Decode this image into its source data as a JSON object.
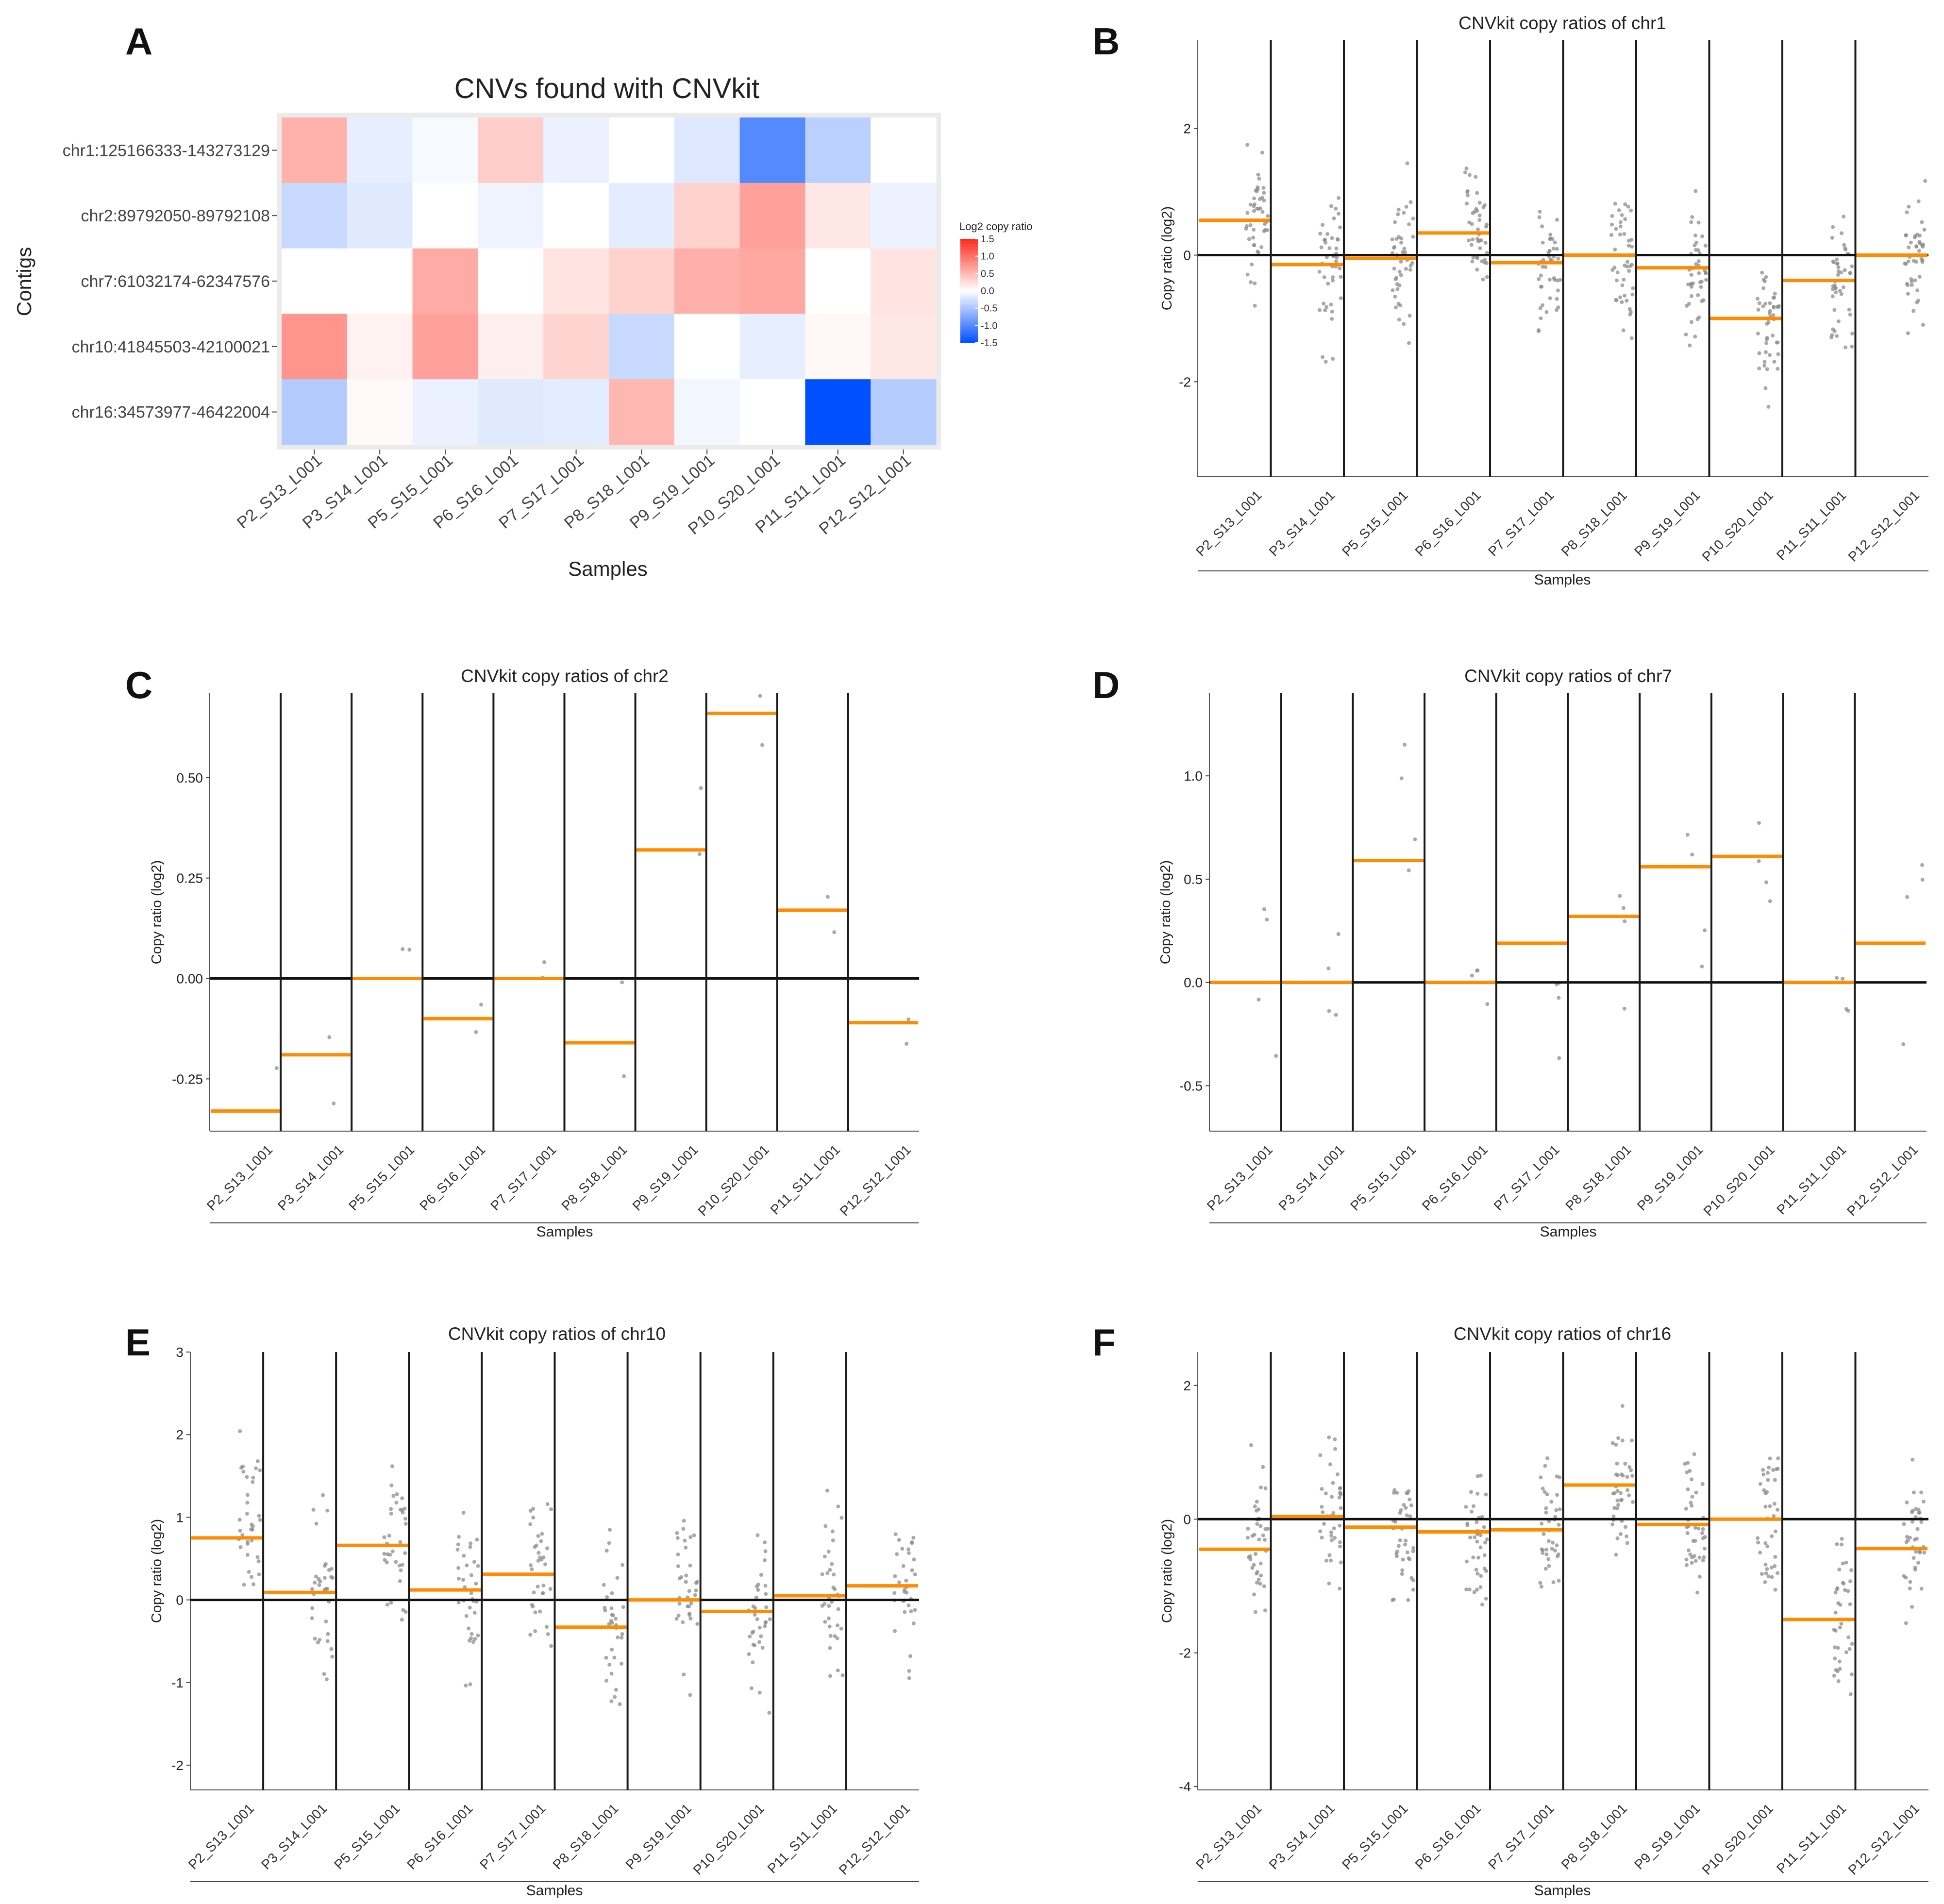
{
  "samples": [
    "P2_S13_L001",
    "P3_S14_L001",
    "P5_S15_L001",
    "P6_S16_L001",
    "P7_S17_L001",
    "P8_S18_L001",
    "P9_S19_L001",
    "P10_S20_L001",
    "P11_S11_L001",
    "P12_S12_L001"
  ],
  "samples_truncated": [
    "P2_S13_L001",
    "P3_S14_L001",
    "P5_S15_L001",
    "P6_S16_L001",
    "P7_S17_L001",
    "P8_S18_L001",
    "P9_S19_L001",
    "P10_S20_L001",
    "P11_S11_L001",
    "P12_S12_L001"
  ],
  "samples_truncated_note": "x tick labels in panels B-F are clipped at the panel edge in the original",
  "colors": {
    "segment": "#ff8c00",
    "baseline": "#111111",
    "divider": "#1a1a1a",
    "points": "#8c8c8c",
    "heatmap_bg": "#ebebeb",
    "neg": "#0050ff",
    "pos": "#ff2a1a",
    "mid": "#ffffff"
  },
  "chart_data": [
    {
      "panel": "A",
      "type": "heatmap",
      "title": "CNVs found with CNVkit",
      "xlabel": "Samples",
      "ylabel": "Contigs",
      "legend_title": "Log2 copy ratio",
      "legend_ticks": [
        1.5,
        1.0,
        0.5,
        0.0,
        -0.5,
        -1.0,
        -1.5
      ],
      "legend_tick_labels": [
        "1.5",
        "1.0",
        "0.5",
        "0.0",
        "-0.5",
        "-1.0",
        "-1.5"
      ],
      "color_range": [
        -1.5,
        1.5
      ],
      "rows": [
        "chr1:125166333-143273129",
        "chr2:89792050-89792108",
        "chr7:61032174-62347576",
        "chr10:41845503-42100021",
        "chr16:34573977-46422004"
      ],
      "values": [
        [
          0.55,
          -0.15,
          -0.05,
          0.35,
          -0.12,
          0.0,
          -0.2,
          -1.0,
          -0.4,
          0.0
        ],
        [
          -0.33,
          -0.19,
          0.0,
          -0.1,
          0.0,
          -0.16,
          0.32,
          0.66,
          0.17,
          -0.11
        ],
        [
          0.0,
          0.0,
          0.59,
          0.0,
          0.19,
          0.32,
          0.56,
          0.61,
          0.0,
          0.19
        ],
        [
          0.75,
          0.09,
          0.66,
          0.12,
          0.31,
          -0.33,
          0.0,
          -0.14,
          0.05,
          0.17
        ],
        [
          -0.45,
          0.04,
          -0.12,
          -0.19,
          -0.16,
          0.51,
          -0.08,
          0.0,
          -1.5,
          -0.44
        ]
      ]
    },
    {
      "panel": "B",
      "type": "segments",
      "title": "CNVkit copy ratios of chr1",
      "xlabel": "Samples",
      "ylabel": "Copy ratio (log2)",
      "ylim": [
        -3.5,
        3.4
      ],
      "yticks": [
        -2,
        0,
        2
      ],
      "ytick_labels": [
        "-2",
        "0",
        "2"
      ],
      "segments": [
        0.55,
        -0.15,
        -0.05,
        0.35,
        -0.12,
        0.0,
        -0.2,
        -1.0,
        -0.4,
        0.0
      ],
      "spread": 1.1,
      "points_per_sample": 45
    },
    {
      "panel": "C",
      "type": "segments",
      "title": "CNVkit copy ratios of chr2",
      "xlabel": "Samples",
      "ylabel": "Copy ratio (log2)",
      "ylim": [
        -0.38,
        0.71
      ],
      "yticks": [
        -0.25,
        0.0,
        0.25,
        0.5
      ],
      "ytick_labels": [
        "-0.25",
        "0.00",
        "0.25",
        "0.50"
      ],
      "segments": [
        -0.33,
        -0.19,
        0.0,
        -0.1,
        0.0,
        -0.16,
        0.32,
        0.66,
        0.17,
        -0.11
      ],
      "spread": 0.15,
      "points_per_sample": 2
    },
    {
      "panel": "D",
      "type": "segments",
      "title": "CNVkit copy ratios of chr7",
      "xlabel": "Samples",
      "ylabel": "Copy ratio (log2)",
      "ylim": [
        -0.72,
        1.4
      ],
      "yticks": [
        -0.5,
        0.0,
        0.5,
        1.0
      ],
      "ytick_labels": [
        "-0.5",
        "0.0",
        "0.5",
        "1.0"
      ],
      "segments": [
        0.0,
        0.0,
        0.59,
        0.0,
        0.19,
        0.32,
        0.56,
        0.61,
        0.0,
        0.19
      ],
      "spread": 0.45,
      "points_per_sample": 4
    },
    {
      "panel": "E",
      "type": "segments",
      "title": "CNVkit copy ratios of chr10",
      "xlabel": "Samples",
      "ylabel": "Copy ratio (log2)",
      "ylim": [
        -2.3,
        3.0
      ],
      "yticks": [
        -2,
        -1,
        0,
        1,
        2,
        3
      ],
      "ytick_labels": [
        "-2",
        "-1",
        "0",
        "1",
        "2",
        "3"
      ],
      "segments": [
        0.75,
        0.09,
        0.66,
        0.12,
        0.31,
        -0.33,
        0.0,
        -0.14,
        0.05,
        0.17
      ],
      "spread": 1.0,
      "points_per_sample": 35
    },
    {
      "panel": "F",
      "type": "segments",
      "title": "CNVkit copy ratios of chr16",
      "xlabel": "Samples",
      "ylabel": "Copy ratio (log2)",
      "ylim": [
        -4.05,
        2.5
      ],
      "yticks": [
        -4,
        -2,
        0,
        2
      ],
      "ytick_labels": [
        "-4",
        "-2",
        "0",
        "2"
      ],
      "segments": [
        -0.45,
        0.04,
        -0.12,
        -0.19,
        -0.16,
        0.51,
        -0.08,
        0.0,
        -1.5,
        -0.44
      ],
      "spread": 1.1,
      "points_per_sample": 40
    }
  ]
}
